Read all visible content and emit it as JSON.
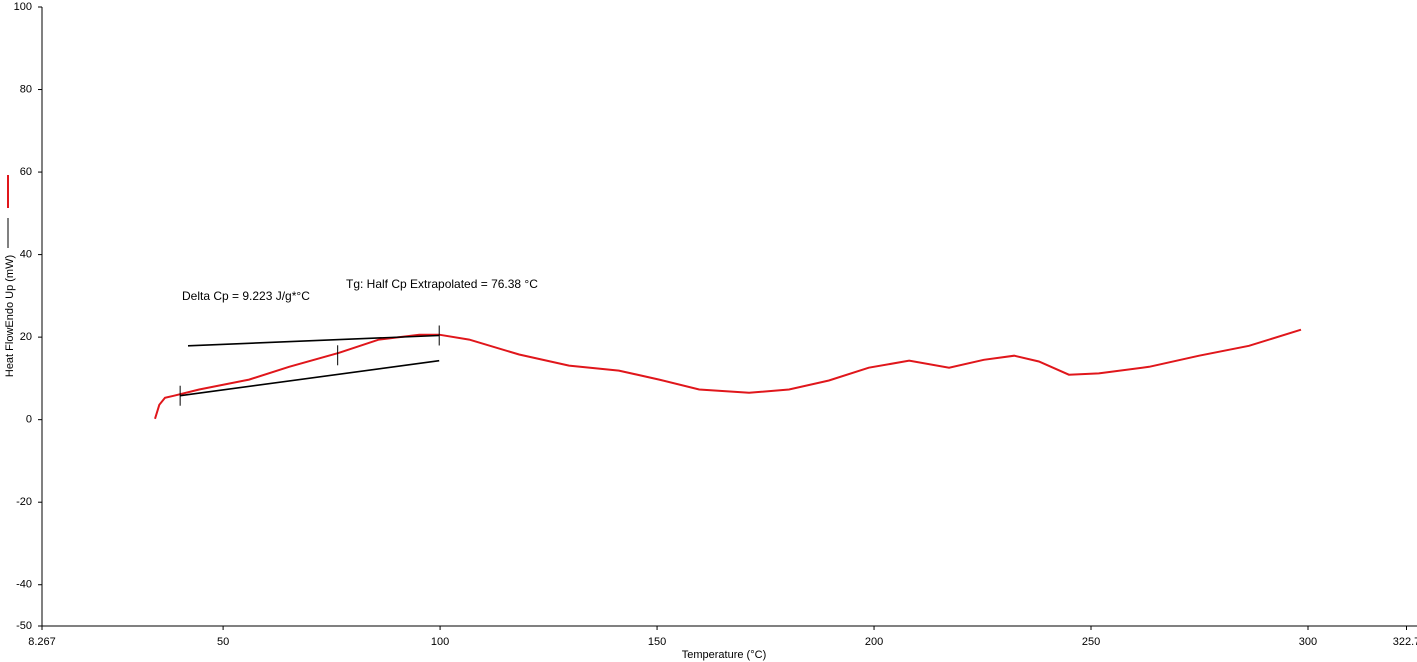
{
  "chart_data": {
    "type": "line",
    "x_label": "Temperature (°C)",
    "y_label": "Heat FlowEndo Up (mW)",
    "xlim": [
      8.267,
      322.7
    ],
    "xticks": [
      8.267,
      50,
      100,
      150,
      200,
      250,
      300,
      322.7
    ],
    "ylim": [
      -50,
      100
    ],
    "yticks": [
      -50,
      -40,
      -20,
      0,
      20,
      40,
      60,
      80,
      100
    ],
    "grid": false,
    "annotations": [
      "Delta Cp = 9.223 J/g*°C",
      "Tg: Half Cp Extrapolated = 76.38 °C"
    ],
    "series": [
      {
        "color": "#e0161b",
        "x": [
          34.3,
          35.3,
          36.6,
          38.7,
          44.5,
          56.0,
          65.2,
          76.7,
          85.9,
          95.2,
          99.8,
          106.7,
          118.2,
          129.7,
          141.2,
          150.5,
          159.7,
          171.2,
          180.4,
          189.6,
          198.8,
          208.1,
          217.3,
          225.3,
          232.3,
          238.0,
          244.9,
          251.8,
          263.4,
          274.9,
          286.4,
          298.4
        ],
        "values": [
          0.2,
          3.6,
          5.3,
          5.8,
          7.3,
          9.7,
          12.8,
          16.2,
          19.4,
          20.6,
          20.6,
          19.4,
          15.8,
          13.1,
          11.9,
          9.7,
          7.3,
          6.5,
          7.3,
          9.5,
          12.6,
          14.3,
          12.6,
          14.5,
          15.5,
          14.1,
          10.9,
          11.2,
          12.8,
          15.5,
          17.9,
          21.8
        ]
      },
      {
        "color": "#000000",
        "x": [
          41.9,
          99.8
        ],
        "values": [
          17.9,
          20.4
        ]
      },
      {
        "color": "#000000",
        "x": [
          40.1,
          99.8
        ],
        "values": [
          5.8,
          14.3
        ]
      }
    ],
    "markers": {
      "color": "#000000",
      "x": [
        40.1,
        76.4,
        99.8
      ],
      "values": [
        5.8,
        15.6,
        20.4
      ]
    }
  }
}
